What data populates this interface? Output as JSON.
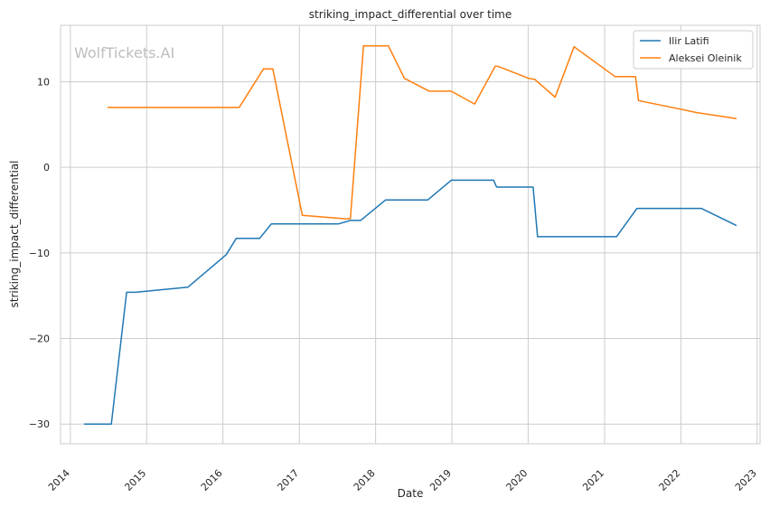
{
  "chart_data": {
    "type": "line",
    "title": "striking_impact_differential over time",
    "xlabel": "Date",
    "ylabel": "striking_impact_differential",
    "watermark": "WolfTickets.AI",
    "xlim": [
      "2013-11-15",
      "2023-01-15"
    ],
    "ylim": [
      -32.3,
      16.6
    ],
    "x_ticks": [
      "2014",
      "2015",
      "2016",
      "2017",
      "2018",
      "2019",
      "2020",
      "2021",
      "2022",
      "2023"
    ],
    "y_ticks": [
      -30,
      -20,
      -10,
      0,
      10
    ],
    "y_tick_labels": [
      "−30",
      "−20",
      "−10",
      "0",
      "10"
    ],
    "grid": true,
    "legend": "top-right",
    "series": [
      {
        "name": "Ilir Latifi",
        "color": "#1f77b4",
        "points": [
          [
            "2014-03-08",
            -30.0
          ],
          [
            "2014-07-16",
            -30.0
          ],
          [
            "2014-09-27",
            -14.6
          ],
          [
            "2014-11-08",
            -14.6
          ],
          [
            "2015-07-18",
            -14.0
          ],
          [
            "2016-01-17",
            -10.2
          ],
          [
            "2016-03-05",
            -8.3
          ],
          [
            "2016-06-25",
            -8.3
          ],
          [
            "2016-08-20",
            -6.6
          ],
          [
            "2017-07-08",
            -6.6
          ],
          [
            "2017-09-02",
            -6.2
          ],
          [
            "2017-10-21",
            -6.2
          ],
          [
            "2018-02-18",
            -3.8
          ],
          [
            "2018-09-08",
            -3.8
          ],
          [
            "2018-12-29",
            -1.5
          ],
          [
            "2019-07-20",
            -1.5
          ],
          [
            "2019-08-03",
            -2.3
          ],
          [
            "2020-01-25",
            -2.3
          ],
          [
            "2020-02-15",
            -8.1
          ],
          [
            "2021-02-27",
            -8.1
          ],
          [
            "2021-06-05",
            -4.8
          ],
          [
            "2022-04-09",
            -4.8
          ],
          [
            "2022-09-24",
            -6.8
          ]
        ]
      },
      {
        "name": "Aleksei Oleinik",
        "color": "#ff7f0e",
        "points": [
          [
            "2014-06-28",
            7.0
          ],
          [
            "2016-03-19",
            7.0
          ],
          [
            "2016-07-13",
            11.5
          ],
          [
            "2016-08-27",
            11.5
          ],
          [
            "2017-01-15",
            -5.6
          ],
          [
            "2017-08-04",
            -6.0
          ],
          [
            "2017-09-02",
            -6.0
          ],
          [
            "2017-11-04",
            14.2
          ],
          [
            "2018-03-03",
            14.2
          ],
          [
            "2018-05-19",
            10.4
          ],
          [
            "2018-09-15",
            8.9
          ],
          [
            "2018-12-29",
            8.9
          ],
          [
            "2019-04-20",
            7.4
          ],
          [
            "2019-07-27",
            11.8
          ],
          [
            "2019-08-10",
            11.8
          ],
          [
            "2020-01-04",
            10.4
          ],
          [
            "2020-02-01",
            10.3
          ],
          [
            "2020-05-09",
            8.2
          ],
          [
            "2020-08-08",
            14.1
          ],
          [
            "2021-02-20",
            10.6
          ],
          [
            "2021-05-29",
            10.6
          ],
          [
            "2021-06-12",
            7.8
          ],
          [
            "2022-03-19",
            6.4
          ],
          [
            "2022-09-24",
            5.7
          ]
        ]
      }
    ]
  }
}
